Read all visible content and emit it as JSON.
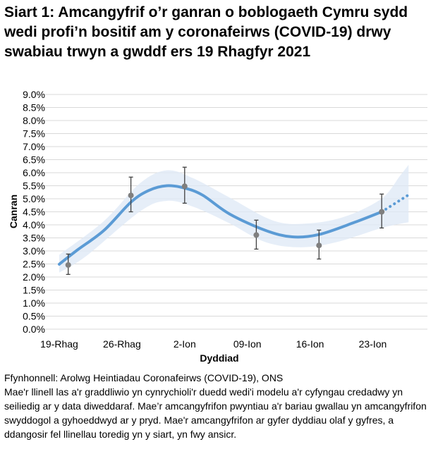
{
  "chart_data": {
    "type": "line",
    "title": "Siart 1: Amcangyfrif o’r ganran o boblogaeth Cymru sydd wedi profi’n bositif am y coronafeirws (COVID-19) drwy swabiau trwyn a gwddf ers 19 Rhagfyr 2021",
    "xlabel": "Dyddiad",
    "ylabel": "Canran",
    "xlim": [
      "2021-12-19",
      "2022-01-27"
    ],
    "ylim": [
      0,
      9
    ],
    "yticks": [
      "0.0%",
      "0.5%",
      "1.0%",
      "1.5%",
      "2.0%",
      "2.5%",
      "3.0%",
      "3.5%",
      "4.0%",
      "4.5%",
      "5.0%",
      "5.5%",
      "6.0%",
      "6.5%",
      "7.0%",
      "7.5%",
      "8.0%",
      "8.5%",
      "9.0%"
    ],
    "xticks": [
      {
        "date": "2021-12-19",
        "label": "19-Rhag"
      },
      {
        "date": "2021-12-26",
        "label": "26-Rhag"
      },
      {
        "date": "2022-01-02",
        "label": "2-Ion"
      },
      {
        "date": "2022-01-09",
        "label": "09-Ion"
      },
      {
        "date": "2022-01-16",
        "label": "16-Ion"
      },
      {
        "date": "2022-01-23",
        "label": "23-Ion"
      }
    ],
    "grid": true,
    "colors": {
      "line": "#5b9bd5",
      "band": "#dde8f5",
      "points": "#7f7f7f",
      "errorbars": "#404040",
      "grid": "#d9d9d9"
    },
    "modelled_trend": [
      {
        "x": "2021-12-19",
        "y": 2.49
      },
      {
        "x": "2021-12-21",
        "y": 3.03
      },
      {
        "x": "2021-12-24",
        "y": 3.79
      },
      {
        "x": "2021-12-27",
        "y": 4.87
      },
      {
        "x": "2021-12-29",
        "y": 5.32
      },
      {
        "x": "2021-12-31",
        "y": 5.5
      },
      {
        "x": "2022-01-02",
        "y": 5.41
      },
      {
        "x": "2022-01-04",
        "y": 5.14
      },
      {
        "x": "2022-01-07",
        "y": 4.42
      },
      {
        "x": "2022-01-11",
        "y": 3.79
      },
      {
        "x": "2022-01-14",
        "y": 3.54
      },
      {
        "x": "2022-01-17",
        "y": 3.63
      },
      {
        "x": "2022-01-21",
        "y": 4.1
      },
      {
        "x": "2022-01-24",
        "y": 4.5
      }
    ],
    "modelled_trend_provisional": [
      {
        "x": "2022-01-24",
        "y": 4.5
      },
      {
        "x": "2022-01-27",
        "y": 5.15
      }
    ],
    "credible_interval_upper": [
      {
        "x": "2021-12-19",
        "y": 2.85
      },
      {
        "x": "2021-12-24",
        "y": 4.15
      },
      {
        "x": "2021-12-28",
        "y": 5.59
      },
      {
        "x": "2021-12-31",
        "y": 6.09
      },
      {
        "x": "2022-01-03",
        "y": 5.78
      },
      {
        "x": "2022-01-07",
        "y": 5.05
      },
      {
        "x": "2022-01-12",
        "y": 4.15
      },
      {
        "x": "2022-01-16",
        "y": 4.06
      },
      {
        "x": "2022-01-20",
        "y": 4.33
      },
      {
        "x": "2022-01-24",
        "y": 5.01
      },
      {
        "x": "2022-01-26",
        "y": 5.86
      },
      {
        "x": "2022-01-27",
        "y": 6.3
      }
    ],
    "credible_interval_lower": [
      {
        "x": "2021-12-19",
        "y": 2.17
      },
      {
        "x": "2021-12-22",
        "y": 2.8
      },
      {
        "x": "2021-12-28",
        "y": 4.51
      },
      {
        "x": "2021-12-31",
        "y": 4.92
      },
      {
        "x": "2022-01-03",
        "y": 4.69
      },
      {
        "x": "2022-01-07",
        "y": 4.06
      },
      {
        "x": "2022-01-11",
        "y": 3.34
      },
      {
        "x": "2022-01-15",
        "y": 3.14
      },
      {
        "x": "2022-01-19",
        "y": 3.34
      },
      {
        "x": "2022-01-24",
        "y": 3.88
      },
      {
        "x": "2022-01-27",
        "y": 4.1
      }
    ],
    "official_estimates": [
      {
        "x": "2021-12-20",
        "y": 2.46,
        "lower": 2.1,
        "upper": 2.88
      },
      {
        "x": "2021-12-27",
        "y": 5.13,
        "lower": 4.5,
        "upper": 5.83
      },
      {
        "x": "2022-01-02",
        "y": 5.48,
        "lower": 4.83,
        "upper": 6.21
      },
      {
        "x": "2022-01-10",
        "y": 3.61,
        "lower": 3.07,
        "upper": 4.18
      },
      {
        "x": "2022-01-17",
        "y": 3.21,
        "lower": 2.69,
        "upper": 3.8
      },
      {
        "x": "2022-01-24",
        "y": 4.5,
        "lower": 3.88,
        "upper": 5.18
      }
    ]
  },
  "footer": {
    "source": "Ffynhonnell: Arolwg Heintiadau Coronafeirws (COVID-19), ONS",
    "note": "Mae'r llinell las a'r graddliwio yn cynrychioli'r duedd wedi'i modelu a'r cyfyngau credadwy yn seiliedig ar y data diweddaraf. Mae’r amcangyfrifon pwyntiau a'r bariau gwallau yn amcangyfrifon swyddogol a gyhoeddwyd ar y pryd. Mae'r amcangyfrifon ar gyfer dyddiau olaf y gyfres, a ddangosir fel llinellau toredig yn y siart, yn fwy ansicr."
  }
}
